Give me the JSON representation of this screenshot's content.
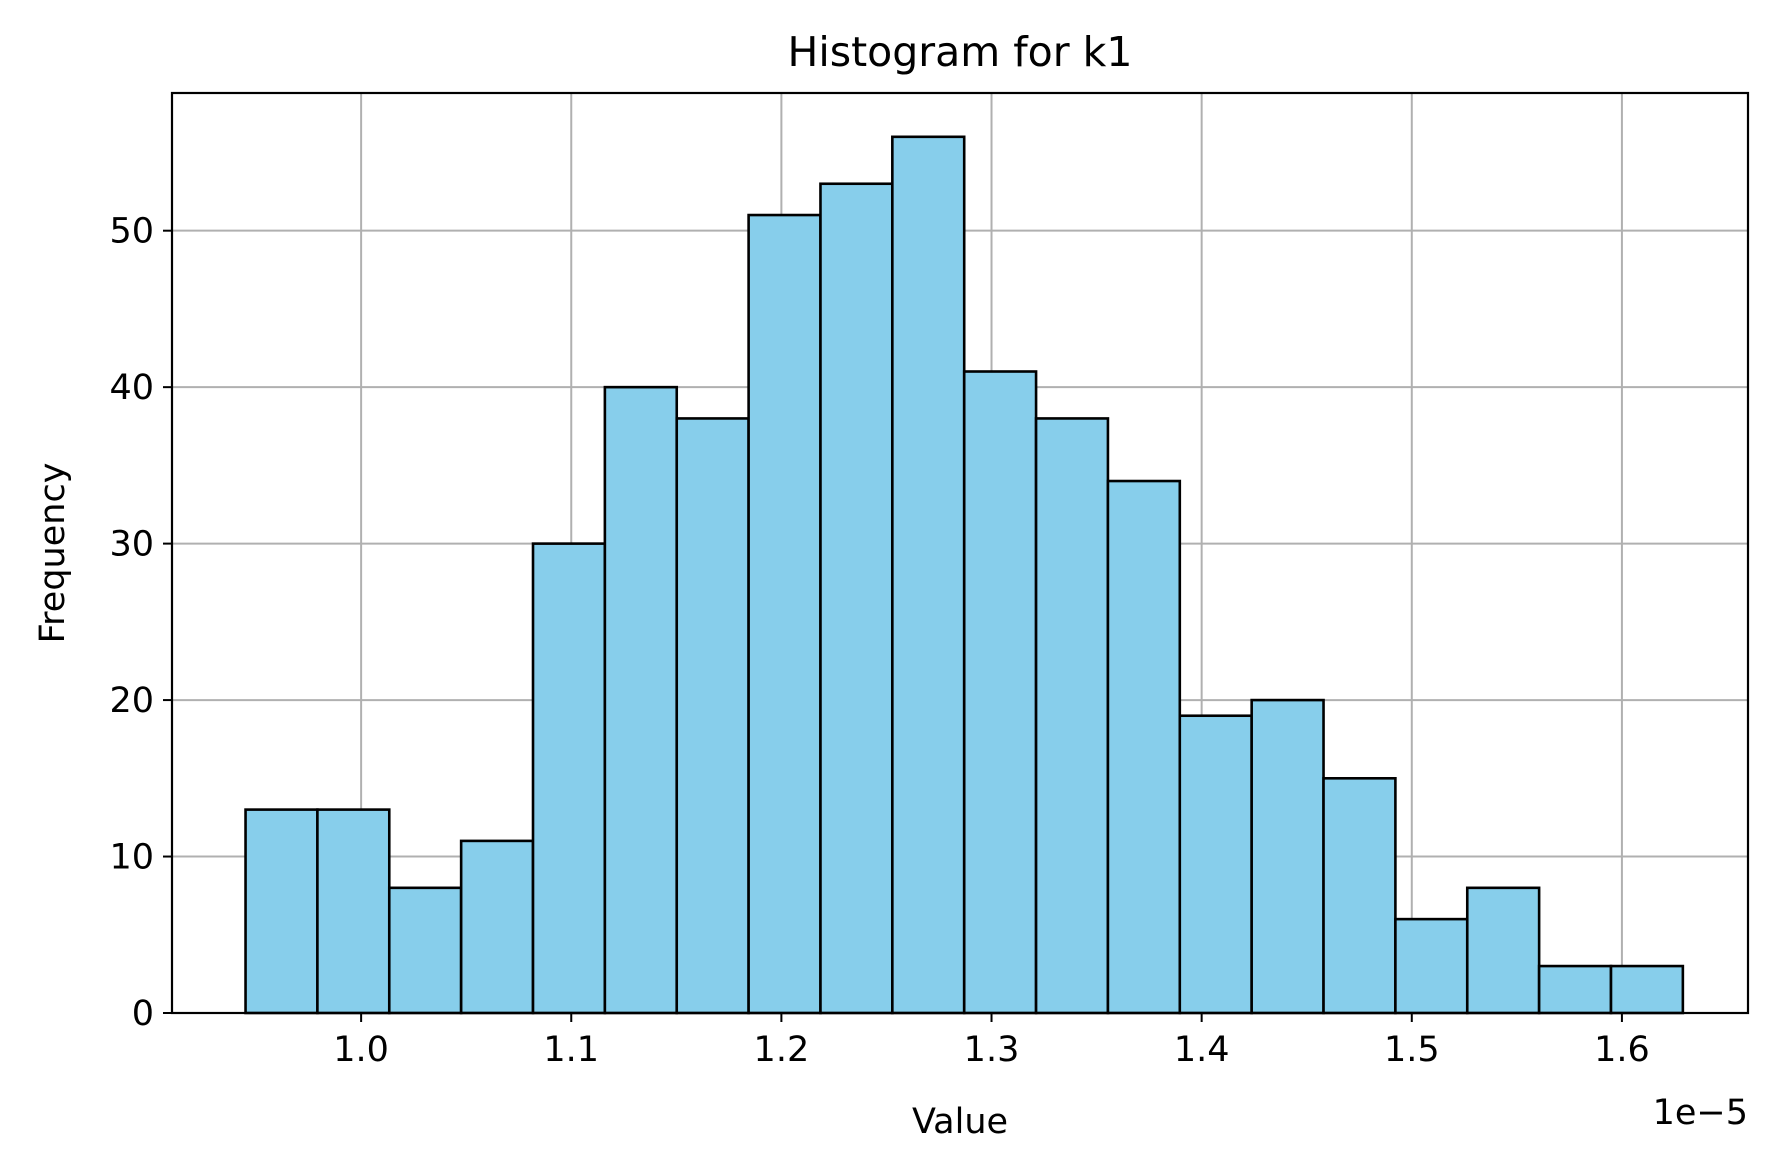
{
  "chart_data": {
    "type": "bar",
    "title": "Histogram for k1",
    "xlabel": "Value",
    "ylabel": "Frequency",
    "x_offset_label": "1e−5",
    "x_scale": 1e-05,
    "bin_start": 0.945,
    "bin_width": 0.0342,
    "values": [
      13,
      13,
      8,
      11,
      30,
      40,
      38,
      51,
      53,
      56,
      41,
      38,
      34,
      19,
      20,
      15,
      6,
      8,
      3,
      3
    ],
    "xlim": [
      0.91,
      1.66
    ],
    "ylim": [
      0,
      58.8
    ],
    "x_ticks": [
      1.0,
      1.1,
      1.2,
      1.3,
      1.4,
      1.5,
      1.6
    ],
    "x_tick_labels": [
      "1.0",
      "1.1",
      "1.2",
      "1.3",
      "1.4",
      "1.5",
      "1.6"
    ],
    "y_ticks": [
      0,
      10,
      20,
      30,
      40,
      50
    ],
    "y_tick_labels": [
      "0",
      "10",
      "20",
      "30",
      "40",
      "50"
    ],
    "grid": true,
    "bar_color": "#87CEEB",
    "edge_color": "#000000",
    "grid_color": "#b0b0b0"
  }
}
